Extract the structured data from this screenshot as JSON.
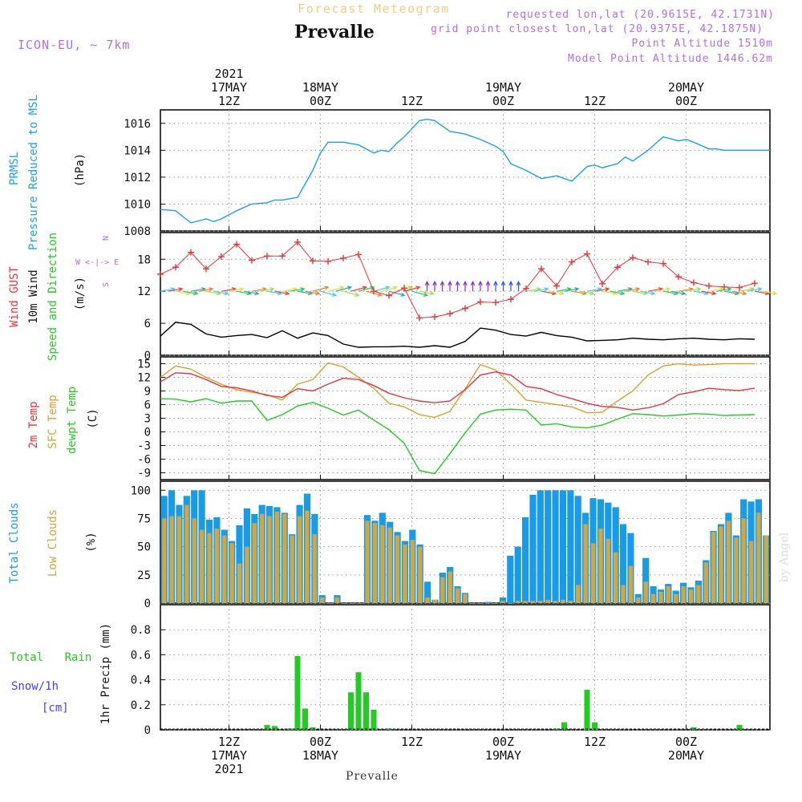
{
  "header": {
    "forecast_title": "Forecast Meteogram",
    "location": "Prevalle",
    "model": "ICON-EU, ~ 7km",
    "requested": "requested lon,lat (20.9615E, 42.1731N)",
    "gridpoint": "grid point closest lon,lat (20.9375E, 42.1875N)",
    "altitude": "Point Altitude 1510m",
    "model_altitude": "Model Point Altitude 1446.62m",
    "footer_location": "Prevalle",
    "watermark": "by Angel"
  },
  "time_axis": {
    "top_labels": [
      {
        "hour": 9,
        "lines": [
          "2021",
          "17MAY",
          "12Z"
        ]
      },
      {
        "hour": 21,
        "lines": [
          "18MAY",
          "00Z"
        ]
      },
      {
        "hour": 33,
        "lines": [
          "12Z"
        ]
      },
      {
        "hour": 45,
        "lines": [
          "19MAY",
          "00Z"
        ]
      },
      {
        "hour": 57,
        "lines": [
          "12Z"
        ]
      },
      {
        "hour": 69,
        "lines": [
          "20MAY",
          "00Z"
        ]
      }
    ],
    "bottom_labels": [
      {
        "hour": 9,
        "lines": [
          "12Z",
          "17MAY",
          "2021"
        ]
      },
      {
        "hour": 21,
        "lines": [
          "00Z",
          "18MAY"
        ]
      },
      {
        "hour": 33,
        "lines": [
          "12Z"
        ]
      },
      {
        "hour": 45,
        "lines": [
          "00Z",
          "19MAY"
        ]
      },
      {
        "hour": 57,
        "lines": [
          "12Z"
        ]
      },
      {
        "hour": 69,
        "lines": [
          "00Z",
          "20MAY"
        ]
      }
    ]
  },
  "panel_labels": {
    "pressure": [
      "PRMSL",
      "Pressure Reduced to MSL",
      "(hPa)"
    ],
    "wind": [
      "Wind GUST",
      "10m Wind",
      "Speed and Direction",
      "(m/s)"
    ],
    "wind_compass": [
      "N",
      "W <-|-> E",
      "S"
    ],
    "temp": [
      "2m Temp",
      "SFC Temp",
      "dewpt Temp",
      "(C)"
    ],
    "clouds": [
      "Total Clouds",
      "Low Clouds",
      "(%)"
    ],
    "precip": [
      "Total Rain",
      "Snow/1h",
      "[cm]",
      "1hr Precip (mm)"
    ]
  },
  "colors": {
    "pressure": "#1da1e6",
    "gust": "#e8343a",
    "wind": "#000000",
    "temp2m": "#e8343a",
    "sfc": "#d9a030",
    "dewpt": "#22cc22",
    "total_clouds": "#1a9be8",
    "low_clouds": "#d4a640",
    "rain": "#22cc22",
    "snow": "#4040ff",
    "model": "#b070e0"
  },
  "chart_data": [
    {
      "type": "line",
      "title": "PRMSL Pressure Reduced to MSL",
      "ylabel": "(hPa)",
      "ylim": [
        1008,
        1017
      ],
      "yticks": [
        1008,
        1010,
        1012,
        1014,
        1016
      ],
      "x_hours": [
        0,
        2,
        4,
        6,
        7,
        8,
        10,
        12,
        14,
        15,
        16,
        18,
        20,
        21,
        22,
        24,
        26,
        28,
        29,
        30,
        31,
        32,
        34,
        35,
        36,
        38,
        40,
        42,
        44,
        45,
        46,
        48,
        50,
        52,
        54,
        56,
        57,
        58,
        60,
        61,
        62,
        64,
        66,
        68,
        69,
        70,
        72,
        73,
        74,
        76,
        78,
        80
      ],
      "series": [
        {
          "values": [
            1009.6,
            1009.5,
            1008.6,
            1008.9,
            1008.7,
            1008.9,
            1009.5,
            1010.0,
            1010.1,
            1010.3,
            1010.3,
            1010.5,
            1012.5,
            1013.8,
            1014.6,
            1014.6,
            1014.4,
            1013.8,
            1014.0,
            1013.9,
            1014.5,
            1015.0,
            1016.2,
            1016.3,
            1016.2,
            1015.4,
            1015.2,
            1014.8,
            1014.3,
            1013.9,
            1013.0,
            1012.5,
            1011.9,
            1012.1,
            1011.7,
            1012.8,
            1012.9,
            1012.7,
            1013.0,
            1013.5,
            1013.2,
            1014.0,
            1015.0,
            1014.7,
            1014.8,
            1014.6,
            1014.1,
            1014.1,
            1014.0,
            1014.0,
            1014.0,
            1014.0
          ]
        }
      ]
    },
    {
      "type": "line",
      "title": "Wind GUST / 10m Wind Speed and Direction",
      "ylabel": "(m/s)",
      "ylim": [
        0,
        23
      ],
      "yticks": [
        0,
        6,
        12,
        18
      ],
      "x_hours": [
        0,
        2,
        4,
        6,
        8,
        10,
        12,
        14,
        16,
        18,
        20,
        22,
        24,
        26,
        28,
        30,
        32,
        34,
        36,
        38,
        40,
        42,
        44,
        46,
        48,
        50,
        52,
        54,
        56,
        58,
        60,
        62,
        64,
        66,
        68,
        70,
        72,
        74,
        76,
        78
      ],
      "series": [
        {
          "name": "Wind GUST",
          "values": [
            15.2,
            16.5,
            19.3,
            16.2,
            18.5,
            20.8,
            17.8,
            18.6,
            18.6,
            21.2,
            17.7,
            17.6,
            18.2,
            18.9,
            12.0,
            11.2,
            12.6,
            7.0,
            7.2,
            7.8,
            8.8,
            10.0,
            9.9,
            10.5,
            12.5,
            16.2,
            13.0,
            17.5,
            19.0,
            13.4,
            16.5,
            18.3,
            17.5,
            17.2,
            14.7,
            13.6,
            13.0,
            12.8,
            12.7,
            13.5
          ]
        },
        {
          "name": "10m Wind",
          "values": [
            3.6,
            6.2,
            5.8,
            4.0,
            3.4,
            3.7,
            3.9,
            3.3,
            4.6,
            3.2,
            4.2,
            3.7,
            2.1,
            1.5,
            1.6,
            1.6,
            1.7,
            1.5,
            1.8,
            1.5,
            2.6,
            5.1,
            4.7,
            3.9,
            3.6,
            4.3,
            3.7,
            3.4,
            2.7,
            2.8,
            2.9,
            3.2,
            3.0,
            2.9,
            3.1,
            3.2,
            3.0,
            2.9,
            3.1,
            3.0
          ]
        }
      ]
    },
    {
      "type": "line",
      "title": "2m Temp / SFC Temp / dewpt Temp",
      "ylabel": "(C)",
      "ylim": [
        -10.5,
        16.5
      ],
      "yticks": [
        -9,
        -6,
        -3,
        0,
        3,
        6,
        9,
        12,
        15
      ],
      "x_hours": [
        0,
        2,
        4,
        6,
        8,
        10,
        12,
        14,
        16,
        18,
        20,
        22,
        24,
        26,
        28,
        30,
        32,
        34,
        36,
        38,
        40,
        42,
        44,
        46,
        48,
        50,
        52,
        54,
        56,
        58,
        60,
        62,
        64,
        66,
        68,
        70,
        72,
        74,
        76,
        78
      ],
      "series": [
        {
          "name": "2m Temp",
          "values": [
            11,
            13,
            12.8,
            11.5,
            10,
            9.7,
            9,
            8,
            7.6,
            9.5,
            9,
            10.5,
            11.8,
            11.5,
            10.2,
            8.5,
            7.5,
            6.8,
            6.4,
            6.8,
            9.3,
            12.5,
            13.2,
            12.5,
            10.0,
            9.5,
            8.2,
            7.3,
            6.3,
            5.6,
            5.4,
            4.8,
            5.3,
            6.2,
            8.2,
            8.8,
            9.6,
            9.3,
            9.1,
            9.6
          ]
        },
        {
          "name": "SFC Temp",
          "values": [
            12,
            14.5,
            13.8,
            12.0,
            10.5,
            9.3,
            8.7,
            8.2,
            7,
            10.5,
            11.5,
            15.2,
            14.3,
            12.0,
            9.6,
            6.3,
            5.5,
            3.8,
            3.2,
            4.5,
            9.5,
            14.8,
            13.6,
            10.5,
            7.0,
            6.5,
            6.0,
            5.5,
            4.2,
            4.3,
            6.8,
            9.0,
            12.5,
            14.5,
            15.0,
            14.7,
            14.8,
            15.0,
            15.0,
            15.0
          ]
        },
        {
          "name": "dewpt Temp",
          "values": [
            7.3,
            7.2,
            6.6,
            7.3,
            6.3,
            6.8,
            6.8,
            2.5,
            3.8,
            5.7,
            6.5,
            5.2,
            3.7,
            4.8,
            2.6,
            0.5,
            -2.5,
            -8.5,
            -9.2,
            -4.8,
            -0.2,
            3.9,
            4.8,
            5.0,
            4.8,
            1.5,
            1.8,
            1.1,
            0.9,
            1.5,
            2.8,
            4.0,
            3.8,
            3.5,
            3.7,
            4.0,
            3.9,
            3.6,
            3.7,
            3.8
          ]
        }
      ]
    },
    {
      "type": "bar",
      "title": "Total Clouds / Low Clouds",
      "ylabel": "(%)",
      "ylim": [
        0,
        108
      ],
      "yticks": [
        0,
        25,
        50,
        75,
        100
      ],
      "series": [
        {
          "name": "Total Clouds",
          "values": [
            95,
            100,
            87,
            95,
            100,
            100,
            74,
            76,
            65,
            55,
            69,
            84,
            79,
            87,
            86,
            85,
            80,
            61,
            87,
            97,
            79,
            7,
            0,
            7,
            0,
            0,
            0,
            78,
            73,
            80,
            72,
            63,
            55,
            65,
            52,
            19,
            3,
            27,
            32,
            15,
            9,
            0,
            0,
            1,
            0,
            5,
            42,
            50,
            76,
            96,
            100,
            100,
            100,
            100,
            100,
            95,
            80,
            93,
            92,
            89,
            85,
            70,
            62,
            8,
            40,
            15,
            12,
            17,
            11,
            18,
            14,
            20,
            38,
            64,
            70,
            80,
            60,
            92,
            90,
            92,
            60
          ]
        },
        {
          "name": "Low Clouds",
          "values": [
            75,
            77,
            77,
            87,
            75,
            65,
            62,
            66,
            60,
            53,
            35,
            50,
            71,
            79,
            77,
            81,
            79,
            60,
            77,
            82,
            61,
            5,
            0,
            5,
            0,
            0,
            0,
            73,
            71,
            69,
            67,
            60,
            52,
            56,
            50,
            5,
            3,
            23,
            28,
            13,
            8,
            0,
            0,
            0,
            0,
            2,
            0,
            2,
            2,
            2,
            2,
            3,
            2,
            3,
            2,
            16,
            70,
            53,
            66,
            57,
            45,
            16,
            33,
            5,
            19,
            8,
            10,
            15,
            8,
            15,
            12,
            16,
            36,
            63,
            68,
            73,
            58,
            75,
            55,
            80,
            60
          ]
        }
      ]
    },
    {
      "type": "bar",
      "title": "1hr Precip",
      "ylabel": "1hr Precip (mm)",
      "ylim": [
        0,
        1.0
      ],
      "yticks": [
        0,
        0.2,
        0.4,
        0.6,
        0.8
      ],
      "x_hours": [
        14,
        15,
        17,
        18,
        19,
        20,
        25,
        26,
        27,
        28,
        30,
        52,
        53,
        56,
        57,
        70,
        76
      ],
      "series": [
        {
          "name": "Total Rain",
          "values": [
            0.04,
            0.03,
            0.01,
            0.59,
            0.17,
            0.02,
            0.3,
            0.46,
            0.3,
            0.16,
            0.01,
            0.01,
            0.06,
            0.32,
            0.06,
            0.02,
            0.04
          ]
        }
      ]
    }
  ]
}
